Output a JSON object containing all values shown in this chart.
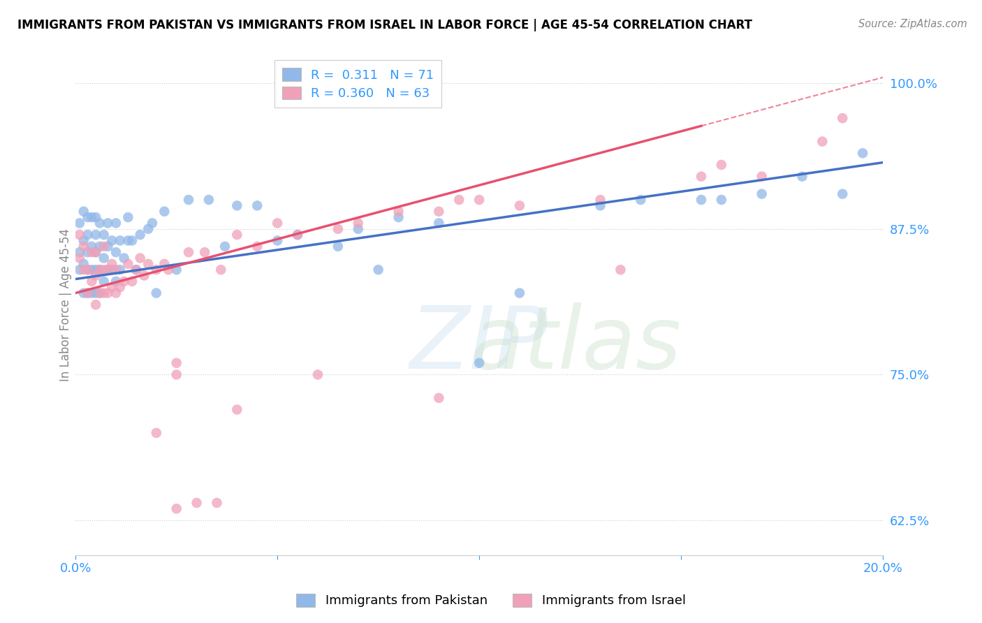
{
  "title": "IMMIGRANTS FROM PAKISTAN VS IMMIGRANTS FROM ISRAEL IN LABOR FORCE | AGE 45-54 CORRELATION CHART",
  "source": "Source: ZipAtlas.com",
  "ylabel": "In Labor Force | Age 45-54",
  "x_min": 0.0,
  "x_max": 0.2,
  "y_min": 0.595,
  "y_max": 1.025,
  "y_ticks": [
    0.625,
    0.75,
    0.875,
    1.0
  ],
  "y_tick_labels": [
    "62.5%",
    "75.0%",
    "87.5%",
    "100.0%"
  ],
  "pakistan_color": "#90B8E8",
  "israel_color": "#F0A0B8",
  "R_pakistan": 0.311,
  "N_pakistan": 71,
  "R_israel": 0.36,
  "N_israel": 63,
  "legend_label_pakistan": "Immigrants from Pakistan",
  "legend_label_israel": "Immigrants from Israel",
  "pak_trend_x0": 0.0,
  "pak_trend_y0": 0.832,
  "pak_trend_x1": 0.2,
  "pak_trend_y1": 0.932,
  "isr_trend_x0": 0.0,
  "isr_trend_y0": 0.82,
  "isr_trend_x1": 0.2,
  "isr_trend_y1": 1.005,
  "isr_trend_solid_end": 0.155,
  "pakistan_x": [
    0.001,
    0.001,
    0.001,
    0.002,
    0.002,
    0.002,
    0.002,
    0.003,
    0.003,
    0.003,
    0.003,
    0.003,
    0.004,
    0.004,
    0.004,
    0.004,
    0.005,
    0.005,
    0.005,
    0.005,
    0.005,
    0.006,
    0.006,
    0.006,
    0.006,
    0.007,
    0.007,
    0.007,
    0.008,
    0.008,
    0.008,
    0.009,
    0.009,
    0.01,
    0.01,
    0.01,
    0.011,
    0.011,
    0.012,
    0.013,
    0.013,
    0.014,
    0.015,
    0.016,
    0.018,
    0.019,
    0.02,
    0.022,
    0.025,
    0.028,
    0.033,
    0.037,
    0.04,
    0.045,
    0.05,
    0.055,
    0.065,
    0.07,
    0.075,
    0.08,
    0.09,
    0.11,
    0.13,
    0.14,
    0.155,
    0.16,
    0.17,
    0.18,
    0.19,
    0.195,
    0.1
  ],
  "pakistan_y": [
    0.84,
    0.855,
    0.88,
    0.82,
    0.845,
    0.865,
    0.89,
    0.82,
    0.84,
    0.855,
    0.87,
    0.885,
    0.82,
    0.84,
    0.86,
    0.885,
    0.82,
    0.84,
    0.855,
    0.87,
    0.885,
    0.82,
    0.84,
    0.86,
    0.88,
    0.83,
    0.85,
    0.87,
    0.84,
    0.86,
    0.88,
    0.84,
    0.865,
    0.83,
    0.855,
    0.88,
    0.84,
    0.865,
    0.85,
    0.865,
    0.885,
    0.865,
    0.84,
    0.87,
    0.875,
    0.88,
    0.82,
    0.89,
    0.84,
    0.9,
    0.9,
    0.86,
    0.895,
    0.895,
    0.865,
    0.87,
    0.86,
    0.875,
    0.84,
    0.885,
    0.88,
    0.82,
    0.895,
    0.9,
    0.9,
    0.9,
    0.905,
    0.92,
    0.905,
    0.94,
    0.76
  ],
  "israel_x": [
    0.001,
    0.001,
    0.002,
    0.002,
    0.003,
    0.003,
    0.004,
    0.004,
    0.005,
    0.005,
    0.005,
    0.006,
    0.006,
    0.007,
    0.007,
    0.007,
    0.008,
    0.008,
    0.009,
    0.009,
    0.01,
    0.01,
    0.011,
    0.012,
    0.013,
    0.014,
    0.015,
    0.016,
    0.017,
    0.018,
    0.02,
    0.022,
    0.023,
    0.025,
    0.028,
    0.032,
    0.036,
    0.04,
    0.045,
    0.05,
    0.055,
    0.065,
    0.07,
    0.08,
    0.09,
    0.095,
    0.1,
    0.11,
    0.13,
    0.135,
    0.155,
    0.16,
    0.17,
    0.185,
    0.19,
    0.02,
    0.025,
    0.04,
    0.06,
    0.09,
    0.025,
    0.03,
    0.035
  ],
  "israel_y": [
    0.85,
    0.87,
    0.84,
    0.86,
    0.82,
    0.84,
    0.83,
    0.855,
    0.81,
    0.835,
    0.855,
    0.82,
    0.84,
    0.82,
    0.84,
    0.86,
    0.82,
    0.84,
    0.825,
    0.845,
    0.82,
    0.84,
    0.825,
    0.83,
    0.845,
    0.83,
    0.84,
    0.85,
    0.835,
    0.845,
    0.84,
    0.845,
    0.84,
    0.76,
    0.855,
    0.855,
    0.84,
    0.87,
    0.86,
    0.88,
    0.87,
    0.875,
    0.88,
    0.89,
    0.89,
    0.9,
    0.9,
    0.895,
    0.9,
    0.84,
    0.92,
    0.93,
    0.92,
    0.95,
    0.97,
    0.7,
    0.75,
    0.72,
    0.75,
    0.73,
    0.635,
    0.64,
    0.64
  ]
}
